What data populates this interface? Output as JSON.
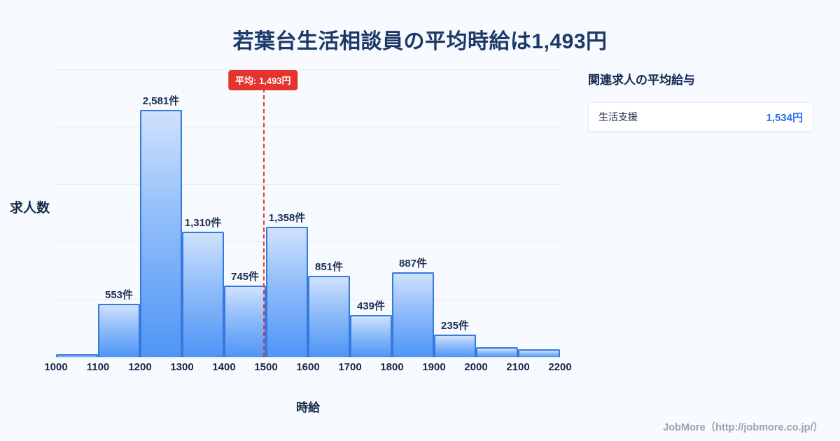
{
  "page": {
    "title": "若葉台生活相談員の平均時給は1,493円",
    "footer": "JobMore（http://jobmore.co.jp/）"
  },
  "chart_data": {
    "type": "bar",
    "title": "若葉台生活相談員の平均時給は1,493円",
    "xlabel": "時給",
    "ylabel": "求人数",
    "ylim": [
      0,
      3000
    ],
    "x_start": 1000,
    "bin_width": 100,
    "grid": true,
    "tick_labels": [
      "1000",
      "1100",
      "1200",
      "1300",
      "1400",
      "1500",
      "1600",
      "1700",
      "1800",
      "1900",
      "2000",
      "2100",
      "2200"
    ],
    "bins": [
      {
        "range": "1000-1100",
        "value": 30,
        "label": ""
      },
      {
        "range": "1100-1200",
        "value": 553,
        "label": "553件"
      },
      {
        "range": "1200-1300",
        "value": 2581,
        "label": "2,581件"
      },
      {
        "range": "1300-1400",
        "value": 1310,
        "label": "1,310件"
      },
      {
        "range": "1400-1500",
        "value": 745,
        "label": "745件"
      },
      {
        "range": "1500-1600",
        "value": 1358,
        "label": "1,358件"
      },
      {
        "range": "1600-1700",
        "value": 851,
        "label": "851件"
      },
      {
        "range": "1700-1800",
        "value": 439,
        "label": "439件"
      },
      {
        "range": "1800-1900",
        "value": 887,
        "label": "887件"
      },
      {
        "range": "1900-2000",
        "value": 235,
        "label": "235件"
      },
      {
        "range": "2000-2100",
        "value": 100,
        "label": ""
      },
      {
        "range": "2100-2200",
        "value": 80,
        "label": ""
      }
    ],
    "average": {
      "value": 1493,
      "label": "平均: 1,493円"
    },
    "colors": {
      "bar_top": "#cfe2fd",
      "bar_bottom": "#4e95f6",
      "bar_border": "#3579e0",
      "average_line": "#e23a32",
      "title_text": "#1b3866",
      "background": "#f7faff",
      "value_accent": "#2b6ef0"
    }
  },
  "side_panel": {
    "heading": "関連求人の平均給与",
    "items": [
      {
        "label": "生活支援",
        "value": "1,534円"
      }
    ]
  }
}
